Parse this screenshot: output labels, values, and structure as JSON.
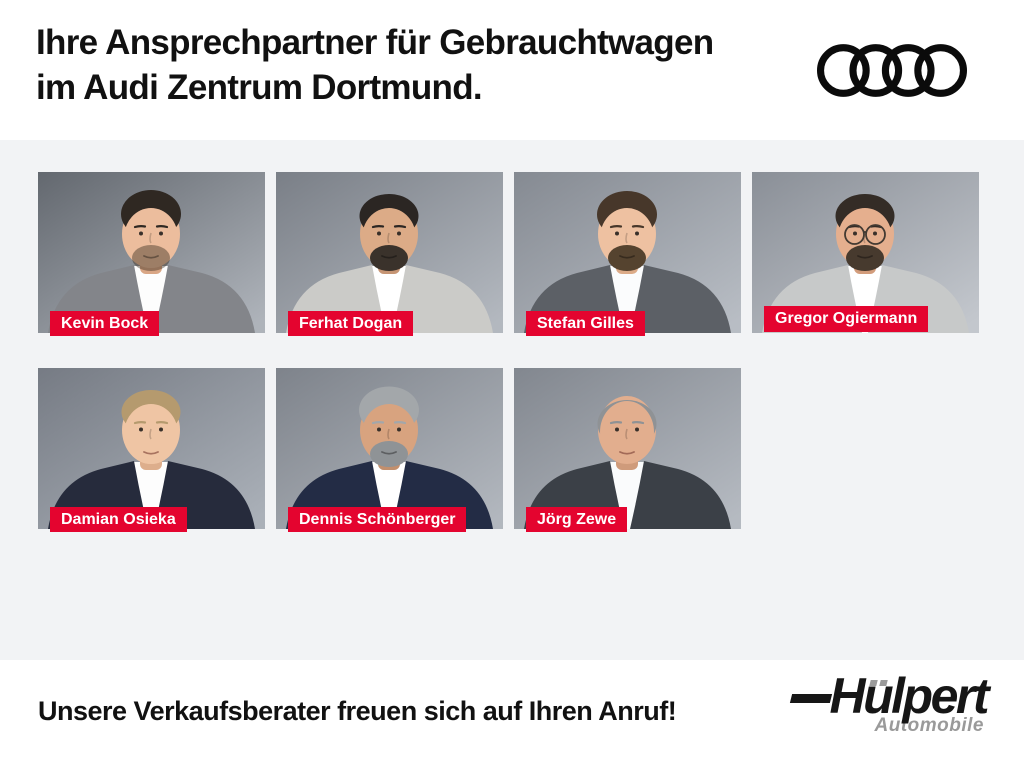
{
  "header": {
    "title_line1": "Ihre Ansprechpartner für Gebrauchtwagen",
    "title_line2": "im Audi Zentrum Dortmund.",
    "brand": "Audi",
    "brand_icon": "audi-rings-icon"
  },
  "people": [
    {
      "name": "Kevin Bock",
      "photo": {
        "bg": [
          "#63686f",
          "#aeb3ba"
        ],
        "suit": "#83858a",
        "shirt": "#fdfdfd",
        "skin": "#ecbd9d",
        "skin_shadow": "#d9a685",
        "hair": "#2f2822",
        "beard": "rgba(62,48,36,0.45)",
        "glasses": false,
        "hairstyle": "quiff"
      }
    },
    {
      "name": "Ferhat Dogan",
      "photo": {
        "bg": [
          "#7a7f87",
          "#b3b8bf"
        ],
        "suit": "#cbcbc8",
        "shirt": "#ffffff",
        "skin": "#dcab87",
        "skin_shadow": "#c69574",
        "hair": "#2b2623",
        "beard": "#3a322b",
        "glasses": false,
        "hairstyle": "short"
      }
    },
    {
      "name": "Stefan Gilles",
      "photo": {
        "bg": [
          "#858a92",
          "#b8bdc4"
        ],
        "suit": "#5c6066",
        "shirt": "#fbfcfd",
        "skin": "#eec1a1",
        "skin_shadow": "#dcab88",
        "hair": "#47372a",
        "beard": "#55432f",
        "glasses": false,
        "hairstyle": "full"
      }
    },
    {
      "name": "Gregor Ogiermann",
      "photo": {
        "bg": [
          "#8a8f97",
          "#c3c7cd"
        ],
        "suit": "#c7c9c9",
        "shirt": "#ffffff",
        "skin": "#e5af8e",
        "skin_shadow": "#d29c7b",
        "hair": "#342c26",
        "beard": "#473a2e",
        "glasses": true,
        "hairstyle": "short"
      }
    },
    {
      "name": "Damian Osieka",
      "photo": {
        "bg": [
          "#767b84",
          "#aab0b8"
        ],
        "suit": "#262b3c",
        "shirt": "#fdfdfd",
        "skin": "#efc5a4",
        "skin_shadow": "#ddae8c",
        "hair": "#b59a6e",
        "beard": null,
        "glasses": false,
        "hairstyle": "short"
      }
    },
    {
      "name": "Dennis Schönberger",
      "photo": {
        "bg": [
          "#7e838b",
          "#b2b7be"
        ],
        "suit": "#232c45",
        "shirt": "#ffffff",
        "skin": "#d8a37f",
        "skin_shadow": "#c28f6d",
        "hair": "#a3a7aa",
        "beard": "#8f9396",
        "glasses": false,
        "hairstyle": "swept"
      }
    },
    {
      "name": "Jörg Zewe",
      "photo": {
        "bg": [
          "#82878f",
          "#b5bac1"
        ],
        "suit": "#3b4047",
        "shirt": "#fafbfc",
        "skin": "#e2ae8e",
        "skin_shadow": "#cf9b7b",
        "hair": "#8f9295",
        "beard": null,
        "glasses": false,
        "hairstyle": "balding"
      }
    }
  ],
  "footer": {
    "text": "Unsere Verkaufsberater freuen sich auf Ihren Anruf!",
    "dealer": {
      "name": "Hülpert",
      "name_parts": {
        "before_umlaut": "H",
        "umlaut_base": "u",
        "after_umlaut": "lpert"
      },
      "subtitle": "Automobile"
    }
  },
  "colors": {
    "header_bg": "#ffffff",
    "content_bg": "#f2f3f5",
    "footer_bg": "#ffffff",
    "tag_red": "#e4042f",
    "tag_text": "#ffffff",
    "title_color": "#111111",
    "rings_color": "#0b0b0b",
    "dealer_black": "#161616",
    "dealer_gray": "#9a9a9a"
  }
}
